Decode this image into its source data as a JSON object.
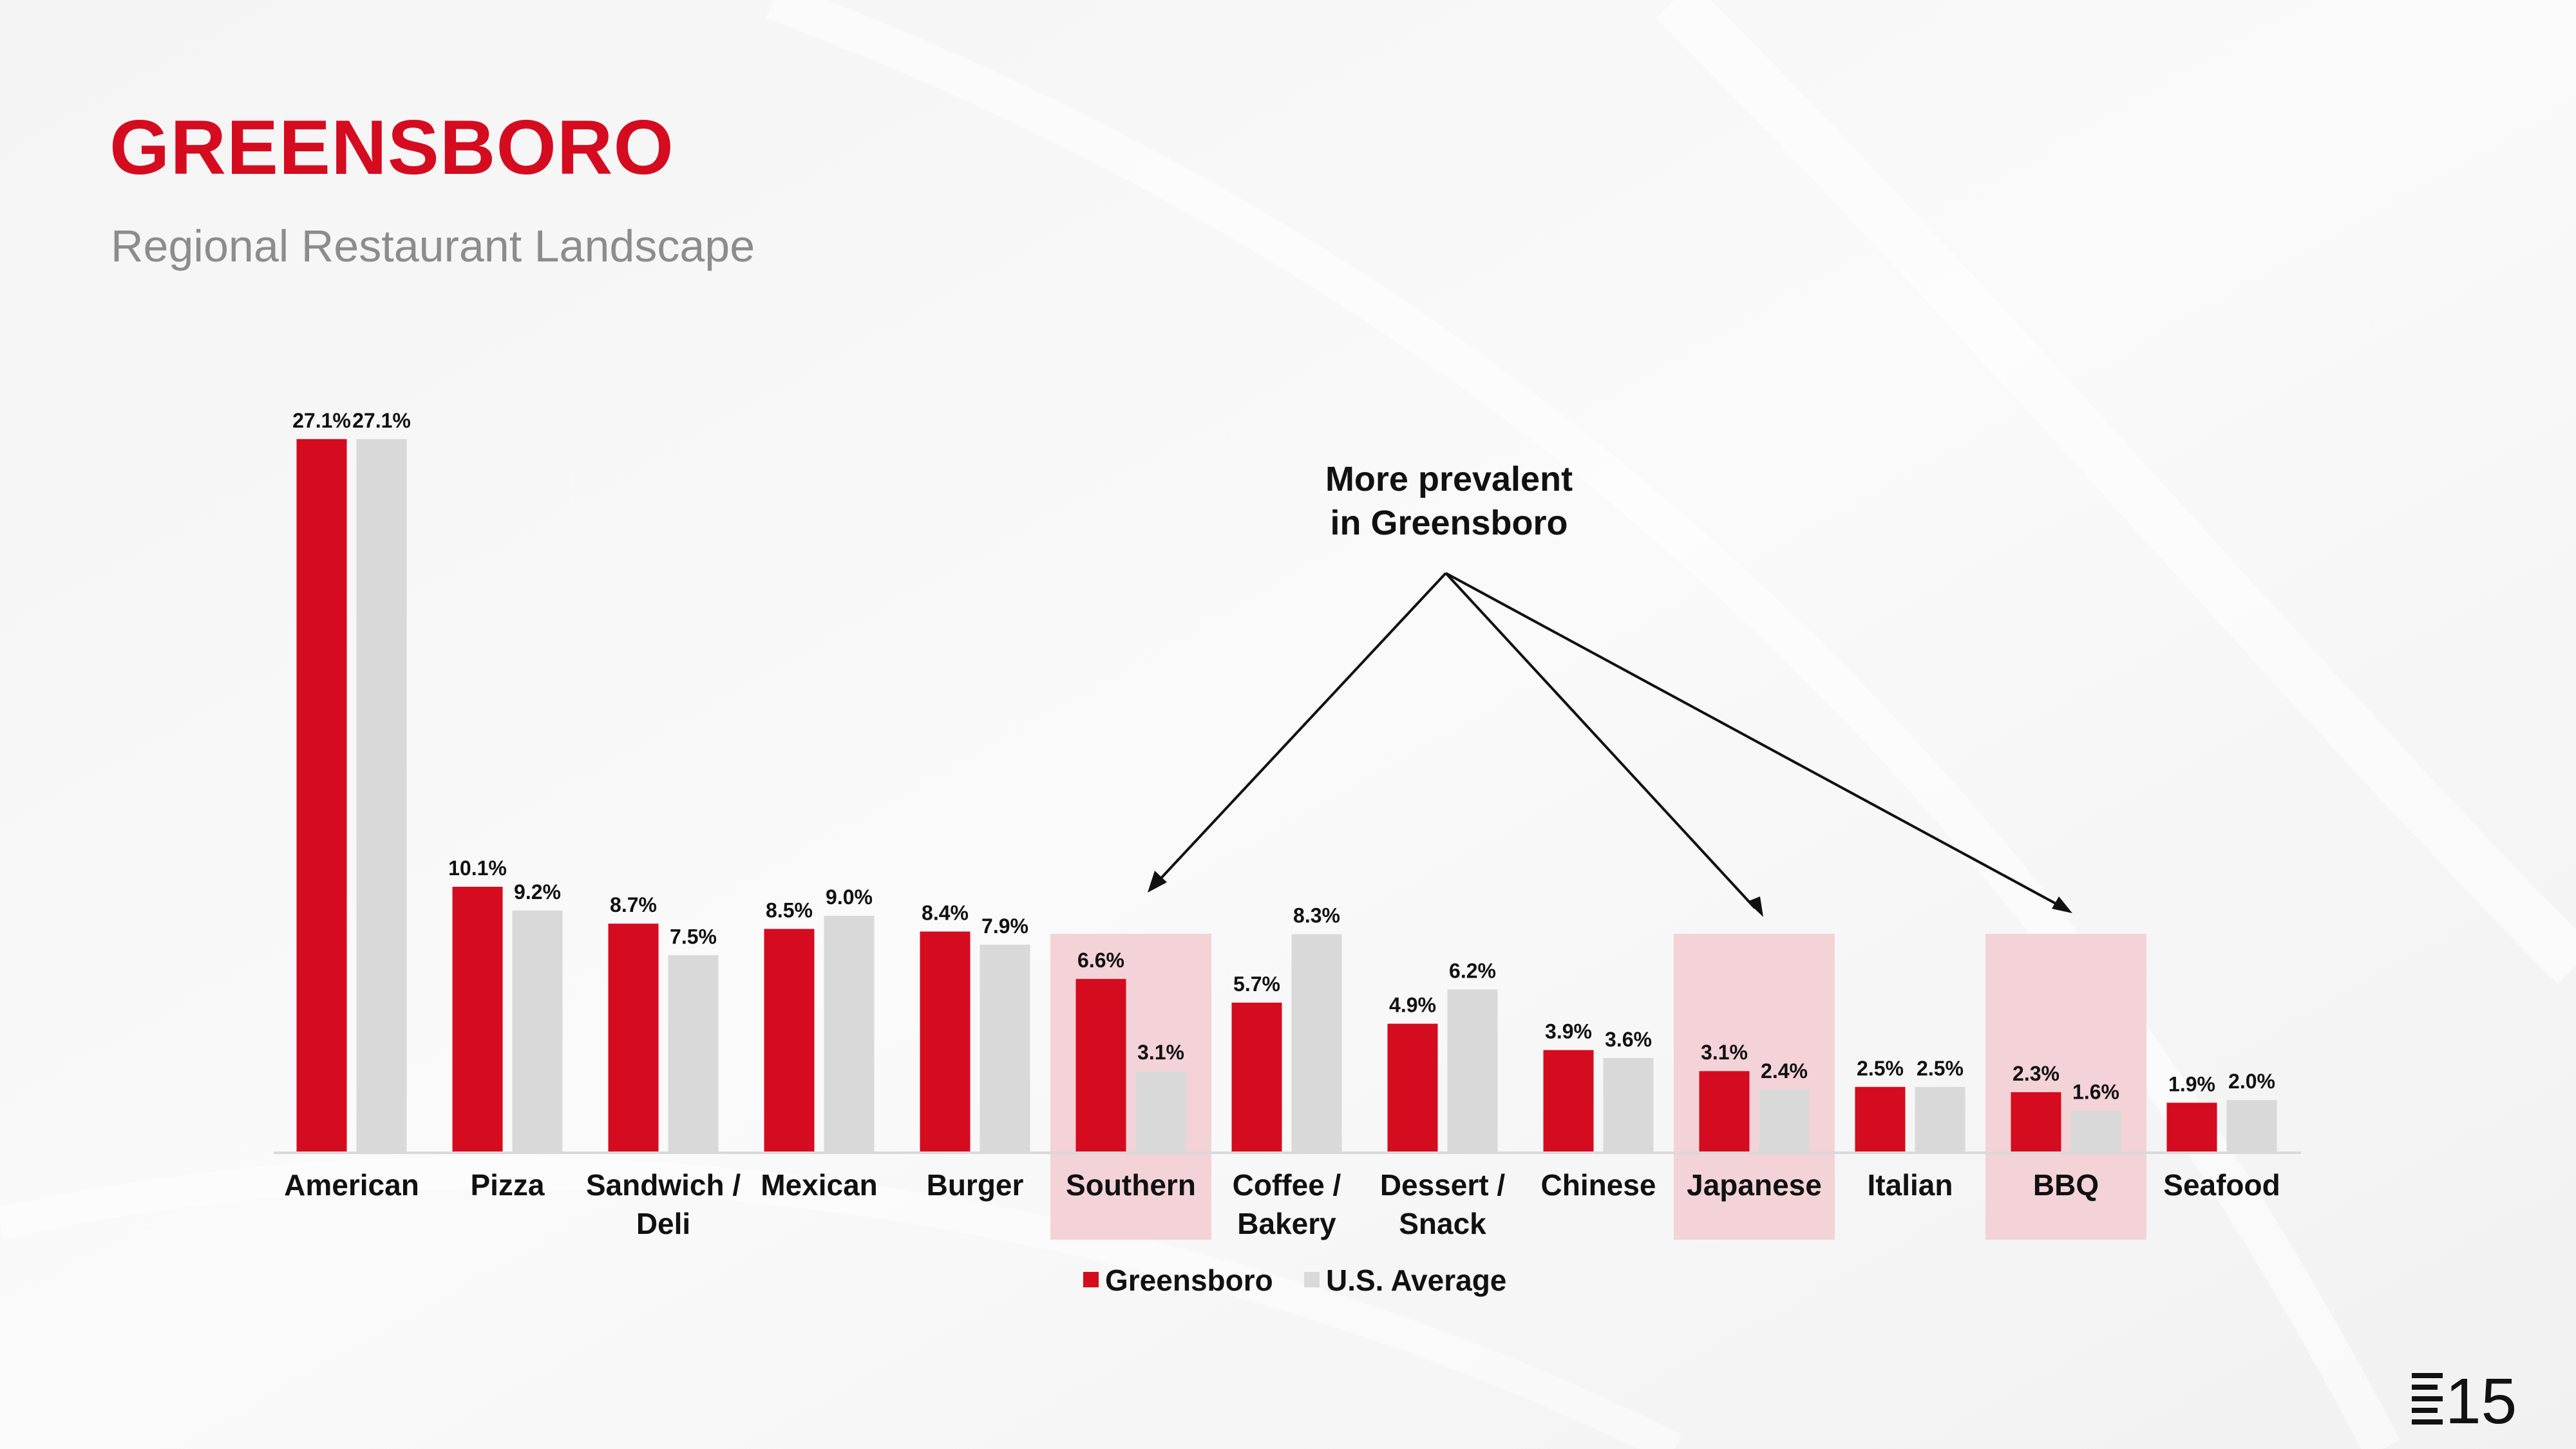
{
  "header": {
    "title": "GREENSBORO",
    "subtitle": "Regional Restaurant Landscape"
  },
  "callout": {
    "lines": [
      "More prevalent",
      "in Greensboro"
    ]
  },
  "colors": {
    "greensboro": "#d50b1f",
    "us_average": "#d9d9d9",
    "highlight": "#f3d3d7",
    "title": "#d50b1f"
  },
  "chart_data": {
    "type": "bar",
    "title": "",
    "xlabel": "",
    "ylabel": "",
    "ylim": [
      0,
      28
    ],
    "grid": false,
    "legend_position": "bottom",
    "categories": [
      [
        "American"
      ],
      [
        "Pizza"
      ],
      [
        "Sandwich /",
        "Deli"
      ],
      [
        "Mexican"
      ],
      [
        "Burger"
      ],
      [
        "Southern"
      ],
      [
        "Coffee /",
        "Bakery"
      ],
      [
        "Dessert /",
        "Snack"
      ],
      [
        "Chinese"
      ],
      [
        "Japanese"
      ],
      [
        "Italian"
      ],
      [
        "BBQ"
      ],
      [
        "Seafood"
      ]
    ],
    "series": [
      {
        "name": "Greensboro",
        "values": [
          27.1,
          10.1,
          8.7,
          8.5,
          8.4,
          6.6,
          5.7,
          4.9,
          3.9,
          3.1,
          2.5,
          2.3,
          1.9
        ]
      },
      {
        "name": "U.S. Average",
        "values": [
          27.1,
          9.2,
          7.5,
          9.0,
          7.9,
          3.1,
          8.3,
          6.2,
          3.6,
          2.4,
          2.5,
          1.6,
          2.0
        ]
      }
    ],
    "highlighted_categories": [
      "Southern",
      "Japanese",
      "BBQ"
    ]
  }
}
